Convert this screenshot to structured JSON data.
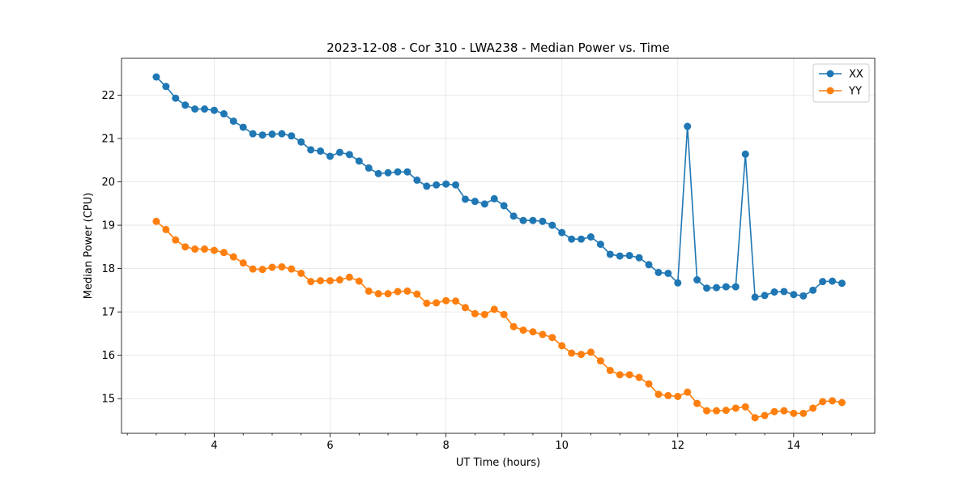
{
  "chart_data": {
    "type": "line",
    "title": "2023-12-08 - Cor 310 - LWA238 - Median Power vs. Time",
    "xlabel": "UT Time (hours)",
    "ylabel": "Median Power (CPU)",
    "xlim": [
      2.4,
      15.4
    ],
    "ylim": [
      14.2,
      22.85
    ],
    "xticks": [
      4,
      6,
      8,
      10,
      12,
      14
    ],
    "xtick_labels": [
      "4",
      "6",
      "8",
      "10",
      "12",
      "14"
    ],
    "yticks": [
      15,
      16,
      17,
      18,
      19,
      20,
      21,
      22
    ],
    "ytick_labels": [
      "15",
      "16",
      "17",
      "18",
      "19",
      "20",
      "21",
      "22"
    ],
    "grid": true,
    "legend_position": "top-right",
    "x": [
      3.0,
      3.167,
      3.333,
      3.5,
      3.667,
      3.833,
      4.0,
      4.167,
      4.333,
      4.5,
      4.667,
      4.833,
      5.0,
      5.167,
      5.333,
      5.5,
      5.667,
      5.833,
      6.0,
      6.167,
      6.333,
      6.5,
      6.667,
      6.833,
      7.0,
      7.167,
      7.333,
      7.5,
      7.667,
      7.833,
      8.0,
      8.167,
      8.333,
      8.5,
      8.667,
      8.833,
      9.0,
      9.167,
      9.333,
      9.5,
      9.667,
      9.833,
      10.0,
      10.167,
      10.333,
      10.5,
      10.667,
      10.833,
      11.0,
      11.167,
      11.333,
      11.5,
      11.667,
      11.833,
      12.0,
      12.167,
      12.333,
      12.5,
      12.667,
      12.833,
      13.0,
      13.167,
      13.333,
      13.5,
      13.667,
      13.833,
      14.0,
      14.167,
      14.333,
      14.5,
      14.667,
      14.833
    ],
    "series": [
      {
        "name": "XX",
        "color": "#1f77b4",
        "values": [
          22.42,
          22.2,
          21.93,
          21.77,
          21.68,
          21.68,
          21.65,
          21.57,
          21.4,
          21.26,
          21.11,
          21.08,
          21.1,
          21.11,
          21.06,
          20.92,
          20.74,
          20.71,
          20.59,
          20.68,
          20.63,
          20.48,
          20.32,
          20.19,
          20.21,
          20.23,
          20.23,
          20.04,
          19.9,
          19.93,
          19.95,
          19.93,
          19.6,
          19.55,
          19.49,
          19.61,
          19.45,
          19.21,
          19.11,
          19.11,
          19.09,
          19.0,
          18.83,
          18.68,
          18.68,
          18.73,
          18.56,
          18.33,
          18.29,
          18.3,
          18.25,
          18.09,
          17.91,
          17.89,
          17.67,
          21.28,
          17.74,
          17.55,
          17.56,
          17.58,
          17.58,
          20.64,
          17.34,
          17.38,
          17.46,
          17.47,
          17.4,
          17.37,
          17.5,
          17.7,
          17.71,
          17.66
        ]
      },
      {
        "name": "YY",
        "color": "#ff7f0e",
        "values": [
          19.09,
          18.9,
          18.66,
          18.5,
          18.45,
          18.45,
          18.42,
          18.37,
          18.27,
          18.13,
          17.99,
          17.98,
          18.03,
          18.04,
          17.99,
          17.89,
          17.7,
          17.72,
          17.72,
          17.74,
          17.8,
          17.71,
          17.48,
          17.42,
          17.42,
          17.47,
          17.48,
          17.41,
          17.2,
          17.21,
          17.26,
          17.25,
          17.1,
          16.96,
          16.94,
          17.06,
          16.94,
          16.66,
          16.58,
          16.54,
          16.48,
          16.41,
          16.22,
          16.05,
          16.02,
          16.07,
          15.87,
          15.65,
          15.55,
          15.55,
          15.49,
          15.34,
          15.1,
          15.07,
          15.05,
          15.15,
          14.89,
          14.72,
          14.72,
          14.73,
          14.78,
          14.81,
          14.56,
          14.61,
          14.7,
          14.72,
          14.66,
          14.66,
          14.78,
          14.93,
          14.95,
          14.91
        ]
      }
    ]
  }
}
